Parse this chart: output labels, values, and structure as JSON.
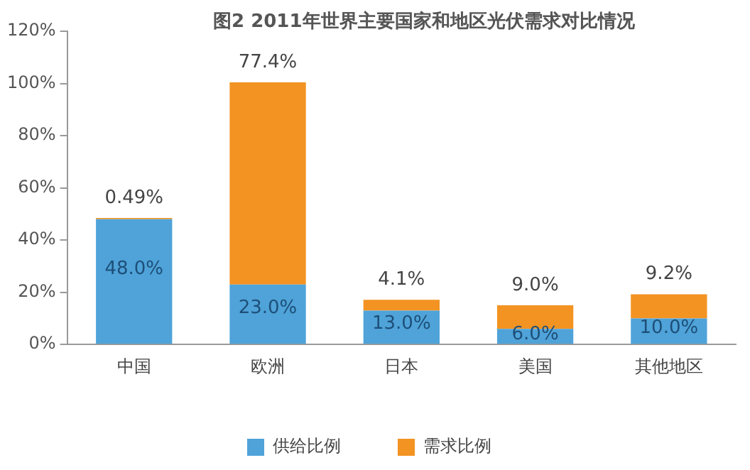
{
  "chart_data": {
    "type": "bar",
    "title": "图2 2011年世界主要国家和地区光伏需求对比情况",
    "categories": [
      "中国",
      "欧洲",
      "日本",
      "美国",
      "其他地区"
    ],
    "stacked": true,
    "series": [
      {
        "name": "供给比例",
        "color": "#4fa3d9",
        "values": [
          48.0,
          23.0,
          13.0,
          6.0,
          10.0
        ],
        "value_labels": [
          "48.0%",
          "23.0%",
          "13.0%",
          "6.0%",
          "10.0%"
        ]
      },
      {
        "name": "需求比例",
        "color": "#f39322",
        "values": [
          0.49,
          77.4,
          4.1,
          9.0,
          9.2
        ],
        "value_labels": [
          "0.49%",
          "77.4%",
          "4.1%",
          "9.0%",
          "9.2%"
        ]
      }
    ],
    "ylim": [
      0,
      120
    ],
    "yticks": [
      {
        "value": 0,
        "label": "0%"
      },
      {
        "value": 20,
        "label": "20%"
      },
      {
        "value": 40,
        "label": "40%"
      },
      {
        "value": 60,
        "label": "60%"
      },
      {
        "value": 80,
        "label": "80%"
      },
      {
        "value": 100,
        "label": "100%"
      },
      {
        "value": 120,
        "label": "120%"
      }
    ],
    "grid": false,
    "legend": "bottom"
  }
}
